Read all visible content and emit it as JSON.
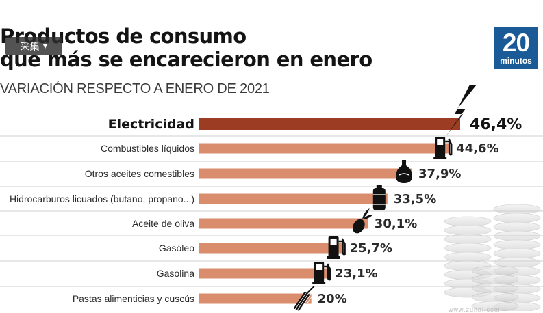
{
  "title_lines": [
    "Productos de consumo",
    "que más se encarecieron en enero"
  ],
  "subtitle": "VARIACIÓN RESPECTO A ENERO DE 2021",
  "overlay_button": {
    "label": "采集",
    "caret_icon": "caret-down-icon"
  },
  "logo": {
    "number": "20",
    "word": "minutos",
    "color": "#1a5a97"
  },
  "colors": {
    "highlight_bar": "#9c3c22",
    "bar": "#d98d6c",
    "separator": "#cfcfcf"
  },
  "chart_data": {
    "type": "bar",
    "orientation": "horizontal",
    "title": "Productos de consumo que más se encarecieron en enero",
    "subtitle": "VARIACIÓN RESPECTO A ENERO DE 2021",
    "unit": "%",
    "xlim": [
      0,
      46.4
    ],
    "highlight_index": 0,
    "categories": [
      "Electricidad",
      "Combustibles líquidos",
      "Otros aceites comestibles",
      "Hidrocarburos licuados (butano, propano...)",
      "Aceite de oliva",
      "Gasóleo",
      "Gasolina",
      "Pastas alimenticias y cuscús"
    ],
    "values": [
      46.4,
      44.6,
      37.9,
      33.5,
      30.1,
      25.7,
      23.1,
      20
    ],
    "value_labels": [
      "46,4%",
      "44,6%",
      "37,9%",
      "33,5%",
      "30,1%",
      "25,7%",
      "23,1%",
      "20%"
    ],
    "icons": [
      "lightning-icon",
      "fuel-pump-icon",
      "oil-bottle-icon",
      "gas-canister-icon",
      "olive-icon",
      "fuel-pump-icon",
      "fuel-pump-icon",
      "pasta-icon"
    ]
  },
  "source_note": "www.zuhai.com"
}
